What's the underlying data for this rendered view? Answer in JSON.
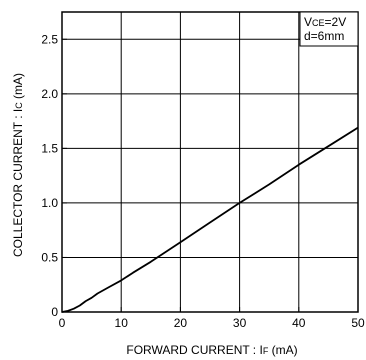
{
  "chart_data": {
    "type": "line",
    "xlabel": "FORWARD  CURRENT : IF (mA)",
    "ylabel": "COLLECTOR  CURRENT : IC (mA)",
    "xlabel_parts": {
      "main": "FORWARD  CURRENT : I",
      "sub": "F",
      "unit": " (mA)"
    },
    "ylabel_parts": {
      "main": "COLLECTOR  CURRENT : I",
      "sub": "C",
      "unit": " (mA)"
    },
    "xlim": [
      0,
      50
    ],
    "ylim": [
      0,
      2.75
    ],
    "xticks": [
      0,
      10,
      20,
      30,
      40,
      50
    ],
    "xtick_labels": [
      "0",
      "10",
      "20",
      "30",
      "40",
      "50"
    ],
    "yticks": [
      0,
      0.5,
      1.0,
      1.5,
      2.0,
      2.5
    ],
    "ytick_labels": [
      "0",
      "0.5",
      "1.0",
      "1.5",
      "2.0",
      "2.5"
    ],
    "grid": true,
    "annotation": {
      "line1_main": "V",
      "line1_sub": "CE",
      "line1_rest": "=2V",
      "line2": "d=6mm",
      "position": "top-right"
    },
    "series": [
      {
        "x": [
          0,
          1,
          2,
          3,
          4,
          5,
          6,
          8,
          10,
          12,
          15,
          20,
          25,
          30,
          35,
          40,
          45,
          50
        ],
        "y": [
          0,
          0.01,
          0.03,
          0.06,
          0.1,
          0.13,
          0.17,
          0.23,
          0.29,
          0.36,
          0.46,
          0.64,
          0.82,
          1.0,
          1.17,
          1.35,
          1.52,
          1.69
        ]
      }
    ]
  }
}
